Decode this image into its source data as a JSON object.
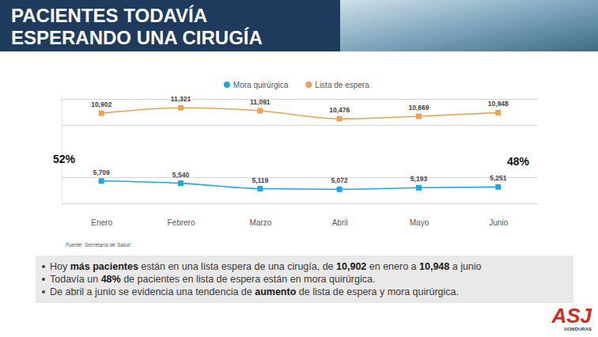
{
  "chart_data": {
    "type": "line",
    "title": "PACIENTES TODAVÍA ESPERANDO UNA CIRUGÍA",
    "categories": [
      "Enero",
      "Febrero",
      "Marzo",
      "Abril",
      "Mayo",
      "Junio"
    ],
    "series": [
      {
        "name": "Mora quirúrgica",
        "color": "#1ba9e1",
        "values": [
          5709,
          5540,
          5119,
          5072,
          5193,
          5251
        ],
        "value_labels": [
          "5,709",
          "5,540",
          "5,119",
          "5,072",
          "5,193",
          "5,251"
        ]
      },
      {
        "name": "Lista de espera",
        "color": "#eca24e",
        "values": [
          10902,
          11321,
          11091,
          10476,
          10669,
          10948
        ],
        "value_labels": [
          "10,902",
          "11,321",
          "11,091",
          "10,476",
          "10,669",
          "10,948"
        ]
      }
    ],
    "ylim": [
      4000,
      12000
    ],
    "yticks": [
      4000,
      6000,
      10000,
      12000
    ],
    "grid": true,
    "tick_labels": "x",
    "legend": "top",
    "data_labels": true,
    "marker": "square",
    "line_style": "smooth",
    "annotations": [
      {
        "text": "52%"
      },
      {
        "text": "48%"
      }
    ],
    "source": "Fuente: Secretaría de Salud"
  },
  "notes": [
    [
      {
        "text": "Hoy ",
        "bold": false
      },
      {
        "text": "más pacientes",
        "bold": true
      },
      {
        "text": " están en una lista espera de una cirugía, de ",
        "bold": false
      },
      {
        "text": "10,902",
        "bold": true
      },
      {
        "text": " en enero a ",
        "bold": false
      },
      {
        "text": "10,948",
        "bold": true
      },
      {
        "text": " a junio",
        "bold": false
      }
    ],
    [
      {
        "text": "Todavía un ",
        "bold": false
      },
      {
        "text": "48%",
        "bold": true
      },
      {
        "text": " de pacientes en lista de espera están en mora quirúrgica.",
        "bold": false
      }
    ],
    [
      {
        "text": "De abril a junio se evidencia una tendencia de ",
        "bold": false
      },
      {
        "text": "aumento",
        "bold": true
      },
      {
        "text": " de lista de espera y mora quirúrgica.",
        "bold": false
      }
    ]
  ],
  "logo": {
    "text": "ASJ",
    "subtext": "HONDURAS"
  }
}
